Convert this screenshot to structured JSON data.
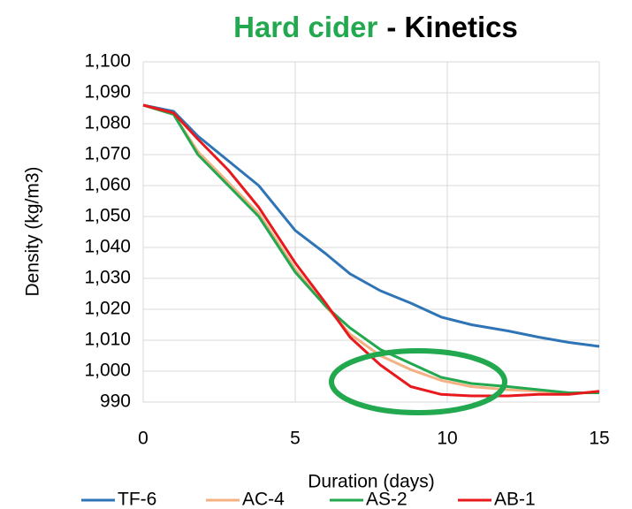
{
  "chart_data": {
    "type": "line",
    "title_parts": [
      {
        "text": "Hard cider",
        "color": "#22a84e"
      },
      {
        "text": "- Kinetics",
        "color": "#000000"
      }
    ],
    "x_label": "Duration (days)",
    "y_label": "Density (kg/m3)",
    "x": [
      0,
      1,
      1.8,
      2.8,
      3.8,
      5,
      6,
      6.8,
      7.8,
      8.8,
      9.8,
      10.8,
      12,
      13,
      14,
      15
    ],
    "series": [
      {
        "name": "TF-6",
        "color": "#2f75b5",
        "values": [
          1086,
          1084,
          1076,
          1068,
          1060,
          1045.5,
          1038,
          1031.5,
          1026,
          1022,
          1017.5,
          1015,
          1013,
          1011,
          1009.3,
          1008
        ]
      },
      {
        "name": "AC-4",
        "color": "#f4b183",
        "values": [
          1086,
          1083,
          1071,
          1061,
          1051,
          1033,
          1021,
          1012,
          1005,
          1000.5,
          997,
          995,
          994,
          993.5,
          993,
          993
        ]
      },
      {
        "name": "AS-2",
        "color": "#22a84e",
        "values": [
          1086,
          1083,
          1070,
          1060,
          1050,
          1032,
          1021,
          1014,
          1007,
          1002.5,
          998,
          996,
          995,
          994,
          993,
          993
        ]
      },
      {
        "name": "AB-1",
        "color": "#e8191d",
        "values": [
          1086,
          1083.5,
          1075,
          1065,
          1053,
          1035,
          1022,
          1011,
          1002,
          995,
          992.5,
          992,
          992,
          992.5,
          992.5,
          993.5
        ]
      }
    ],
    "xlim": [
      0,
      15
    ],
    "xticks": [
      0,
      5,
      10,
      15
    ],
    "ylim": [
      990,
      1100
    ],
    "yticks": [
      990,
      {
        "value": 1000,
        "label": "1,000"
      },
      {
        "value": 1010,
        "label": "1,010"
      },
      {
        "value": 1020,
        "label": "1,020"
      },
      {
        "value": 1030,
        "label": "1,030"
      },
      {
        "value": 1040,
        "label": "1,040"
      },
      {
        "value": 1050,
        "label": "1,050"
      },
      {
        "value": 1060,
        "label": "1,060"
      },
      {
        "value": 1070,
        "label": "1,070"
      },
      {
        "value": 1080,
        "label": "1,080"
      },
      {
        "value": 1090,
        "label": "1,090"
      },
      {
        "value": 1100,
        "label": "1,100"
      }
    ],
    "grid": true,
    "legend": "bottom"
  }
}
